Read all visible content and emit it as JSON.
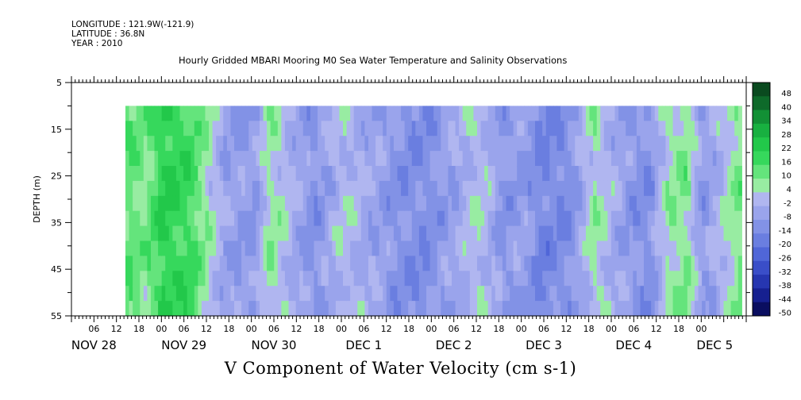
{
  "header": {
    "longitude": "LONGITUDE : 121.9W(-121.9)",
    "latitude": "LATITUDE : 36.8N",
    "year": "YEAR : 2010"
  },
  "chart_data": {
    "type": "heatmap",
    "title": "Hourly Gridded MBARI Mooring M0 Sea Water Temperature and Salinity Observations",
    "bottom_title": "V Component of Water Velocity (cm s-1)",
    "ylabel": "DEPTH (m)",
    "ylim": [
      5,
      55
    ],
    "y_inverted": true,
    "y_ticks": [
      "5",
      "15",
      "25",
      "35",
      "45",
      "55"
    ],
    "x_hour_ticks": [
      "06",
      "12",
      "18",
      "00",
      "06",
      "12",
      "18",
      "00",
      "06",
      "12",
      "18",
      "00",
      "06",
      "12",
      "18",
      "00",
      "06",
      "12",
      "18",
      "00",
      "06",
      "12",
      "18",
      "00",
      "06",
      "12",
      "18",
      "00"
    ],
    "x_day_labels": [
      "NOV 28",
      "NOV 29",
      "NOV 30",
      "DEC  1",
      "DEC  2",
      "DEC  3",
      "DEC  4",
      "DEC 5"
    ],
    "data_depth_range": [
      10,
      55
    ],
    "colorbar": {
      "labels": [
        "48",
        "40",
        "34",
        "28",
        "22",
        "16",
        "10",
        "4",
        "-2",
        "-8",
        "-14",
        "-20",
        "-26",
        "-32",
        "-38",
        "-44",
        "-50"
      ],
      "colors": [
        "#0a4a1f",
        "#0e6a2a",
        "#129035",
        "#18b040",
        "#22c84a",
        "#36d85c",
        "#64e47c",
        "#98eca2",
        "#b0b6f0",
        "#9aa4ec",
        "#8292e6",
        "#6a7ee0",
        "#5066d8",
        "#3a4ec8",
        "#2636b0",
        "#162090",
        "#0a0e60"
      ]
    },
    "v_profile": {
      "x_day": [
        0.6,
        0.8,
        1.0,
        1.3,
        1.5,
        1.7,
        2.0,
        2.2,
        2.5,
        2.7,
        3.0,
        3.3,
        3.6,
        3.9,
        4.2,
        4.5,
        4.8,
        5.0,
        5.2,
        5.5,
        5.8,
        6.1,
        6.4,
        6.6,
        6.8,
        7.0,
        7.2,
        7.4
      ],
      "v": [
        14,
        10,
        22,
        18,
        6,
        -6,
        -8,
        8,
        -4,
        -10,
        2,
        -4,
        -10,
        -12,
        -6,
        4,
        -10,
        -6,
        -14,
        -12,
        6,
        -6,
        -12,
        6,
        10,
        -8,
        0,
        10
      ]
    },
    "grid": false
  }
}
